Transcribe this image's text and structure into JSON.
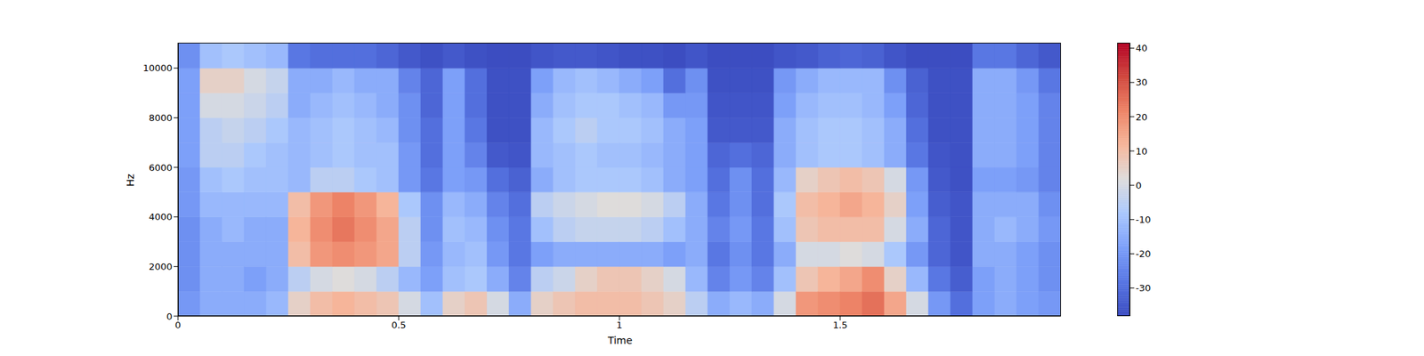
{
  "chart_data": {
    "type": "heatmap",
    "x_label": "Time",
    "y_label": "Hz",
    "color": "coolwarm",
    "xlim": [
      0,
      2.0
    ],
    "xticks": [
      0,
      0.5,
      1,
      1.5
    ],
    "ylim": [
      0,
      11025
    ],
    "yticks": [
      0,
      2000,
      4000,
      6000,
      8000,
      10000
    ],
    "x_edges": [
      0,
      0.05,
      0.1,
      0.15,
      0.2,
      0.25,
      0.3,
      0.35,
      0.4,
      0.45,
      0.5,
      0.55,
      0.6,
      0.65,
      0.7,
      0.75,
      0.8,
      0.85,
      0.9,
      0.95,
      1,
      1.05,
      1.1,
      1.15,
      1.2,
      1.25,
      1.3,
      1.35,
      1.4,
      1.45,
      1.5,
      1.55,
      1.6,
      1.65,
      1.7,
      1.75,
      1.8,
      1.85,
      1.9,
      1.95,
      2
    ],
    "y_edges": [
      0,
      1000,
      2000,
      3000,
      4000,
      5000,
      6000,
      7000,
      8000,
      9000,
      10000,
      11025
    ],
    "columns": [
      [
        -20,
        -22,
        -22,
        -22,
        -20,
        -20,
        -18,
        -18,
        -18,
        -18,
        -22
      ],
      [
        -15,
        -15,
        -15,
        -15,
        -12,
        -10,
        -5,
        -5,
        0,
        5,
        -10
      ],
      [
        -15,
        -15,
        -15,
        -12,
        -12,
        -8,
        -5,
        -3,
        0,
        5,
        -8
      ],
      [
        -15,
        -18,
        -15,
        -15,
        -12,
        -10,
        -8,
        -5,
        -2,
        0,
        -10
      ],
      [
        -12,
        -15,
        -15,
        -15,
        -12,
        -10,
        -10,
        -8,
        -5,
        -3,
        -12
      ],
      [
        5,
        -5,
        10,
        12,
        10,
        -12,
        -12,
        -12,
        -15,
        -15,
        -28
      ],
      [
        10,
        0,
        18,
        20,
        18,
        -5,
        -10,
        -10,
        -12,
        -15,
        -30
      ],
      [
        12,
        2,
        20,
        24,
        22,
        -5,
        -8,
        -8,
        -10,
        -12,
        -30
      ],
      [
        10,
        0,
        18,
        20,
        18,
        -8,
        -10,
        -10,
        -12,
        -15,
        -30
      ],
      [
        8,
        -5,
        15,
        15,
        12,
        -10,
        -10,
        -12,
        -15,
        -15,
        -32
      ],
      [
        0,
        -12,
        -5,
        -5,
        -8,
        -20,
        -20,
        -22,
        -22,
        -25,
        -35
      ],
      [
        -10,
        -18,
        -20,
        -22,
        -22,
        -28,
        -30,
        -30,
        -32,
        -32,
        -37
      ],
      [
        5,
        -10,
        -12,
        -10,
        -12,
        -18,
        -18,
        -18,
        -18,
        -18,
        -35
      ],
      [
        8,
        -8,
        -10,
        -12,
        -15,
        -20,
        -25,
        -28,
        -30,
        -30,
        -37
      ],
      [
        0,
        -15,
        -20,
        -22,
        -25,
        -30,
        -35,
        -37,
        -37,
        -37,
        -38
      ],
      [
        -15,
        -25,
        -28,
        -28,
        -30,
        -33,
        -36,
        -37,
        -37,
        -37,
        -38
      ],
      [
        5,
        -5,
        -18,
        -10,
        -5,
        -15,
        -12,
        -12,
        -15,
        -18,
        -36
      ],
      [
        8,
        -2,
        -15,
        -5,
        -2,
        -10,
        -10,
        -8,
        -10,
        -12,
        -35
      ],
      [
        10,
        5,
        -15,
        -3,
        0,
        -8,
        -8,
        -5,
        -8,
        -10,
        -35
      ],
      [
        10,
        8,
        -15,
        -3,
        2,
        -8,
        -10,
        -8,
        -8,
        -12,
        -36
      ],
      [
        10,
        8,
        -15,
        -3,
        2,
        -8,
        -10,
        -8,
        -10,
        -15,
        -37
      ],
      [
        8,
        5,
        -15,
        -5,
        0,
        -10,
        -12,
        -10,
        -12,
        -18,
        -37
      ],
      [
        5,
        0,
        -18,
        -10,
        -5,
        -15,
        -15,
        -15,
        -20,
        -30,
        -38
      ],
      [
        -5,
        -12,
        -15,
        -15,
        -15,
        -18,
        -18,
        -18,
        -20,
        -22,
        -36
      ],
      [
        -15,
        -25,
        -28,
        -25,
        -28,
        -30,
        -32,
        -35,
        -36,
        -37,
        -38
      ],
      [
        -12,
        -20,
        -22,
        -20,
        -22,
        -22,
        -30,
        -35,
        -36,
        -37,
        -38
      ],
      [
        -15,
        -25,
        -28,
        -28,
        -30,
        -30,
        -32,
        -35,
        -36,
        -37,
        -38
      ],
      [
        0,
        -10,
        -15,
        -10,
        -8,
        -12,
        -15,
        -15,
        -18,
        -20,
        -36
      ],
      [
        18,
        8,
        0,
        8,
        10,
        5,
        -10,
        -10,
        -12,
        -15,
        -35
      ],
      [
        20,
        12,
        0,
        10,
        12,
        8,
        -8,
        -8,
        -10,
        -12,
        -33
      ],
      [
        22,
        15,
        2,
        10,
        15,
        10,
        -8,
        -8,
        -10,
        -12,
        -32
      ],
      [
        25,
        20,
        0,
        10,
        12,
        8,
        -10,
        -10,
        -12,
        -12,
        -33
      ],
      [
        15,
        5,
        -8,
        0,
        5,
        0,
        -15,
        -15,
        -18,
        -22,
        -36
      ],
      [
        0,
        -12,
        -20,
        -15,
        -18,
        -20,
        -28,
        -30,
        -32,
        -33,
        -38
      ],
      [
        -20,
        -28,
        -32,
        -32,
        -34,
        -35,
        -36,
        -37,
        -37,
        -37,
        -38
      ],
      [
        -30,
        -34,
        -36,
        -36,
        -36,
        -37,
        -37,
        -37,
        -37,
        -37,
        -38
      ],
      [
        -18,
        -18,
        -15,
        -15,
        -15,
        -18,
        -15,
        -15,
        -15,
        -15,
        -28
      ],
      [
        -15,
        -15,
        -15,
        -12,
        -15,
        -18,
        -15,
        -15,
        -15,
        -15,
        -28
      ],
      [
        -18,
        -18,
        -18,
        -15,
        -15,
        -20,
        -18,
        -18,
        -18,
        -20,
        -32
      ],
      [
        -20,
        -22,
        -22,
        -20,
        -22,
        -25,
        -25,
        -25,
        -25,
        -28,
        -35
      ]
    ],
    "colorbar": {
      "range": [
        -38.2,
        41.6
      ],
      "ticks": [
        -30,
        -20,
        -10,
        0,
        10,
        20,
        30,
        40
      ]
    }
  }
}
